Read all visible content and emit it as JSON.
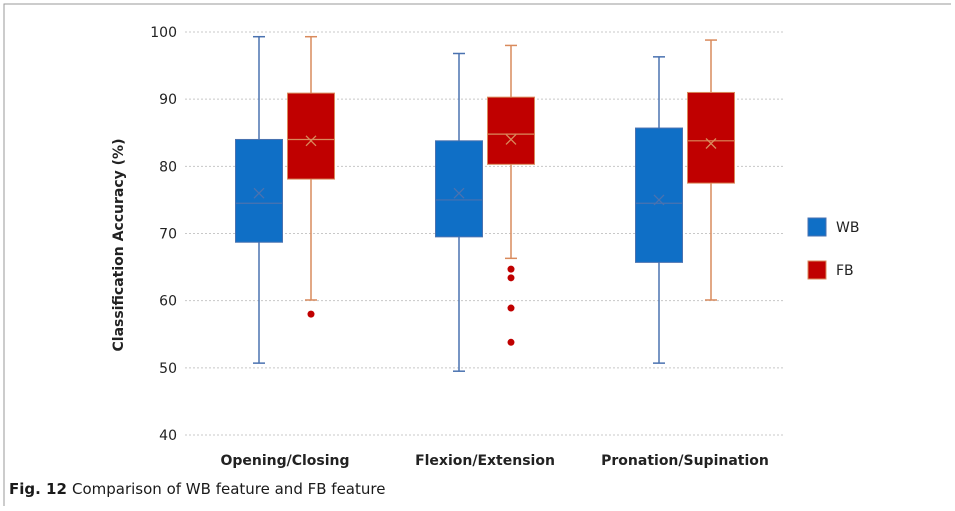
{
  "chart_data": {
    "type": "box",
    "ylabel": "Classification Accuracy (%)",
    "categories": [
      "Opening/Closing",
      "Flexion/Extension",
      "Pronation/Supination"
    ],
    "ylim": [
      40,
      100
    ],
    "yticks": [
      40,
      50,
      60,
      70,
      80,
      90,
      100
    ],
    "grid": true,
    "series": [
      {
        "name": "WB",
        "color": "#0f6fc6",
        "whisker_color": "#4a72b0",
        "whisker_low": [
          50.7,
          49.5,
          50.7
        ],
        "q1": [
          68.7,
          69.5,
          65.7
        ],
        "median": [
          74.5,
          75,
          74.5
        ],
        "q3": [
          84.0,
          83.8,
          85.7
        ],
        "whisker_high": [
          99.3,
          96.8,
          96.3
        ],
        "mean": [
          76,
          76,
          75
        ],
        "outliers": [
          [],
          [],
          []
        ]
      },
      {
        "name": "FB",
        "color": "#c00000",
        "whisker_color": "#d98a5c",
        "whisker_low": [
          60.1,
          66.3,
          60.1
        ],
        "q1": [
          78.1,
          80.3,
          77.5
        ],
        "median": [
          84.0,
          84.8,
          83.8
        ],
        "q3": [
          90.9,
          90.3,
          91.0
        ],
        "whisker_high": [
          99.3,
          98.0,
          98.8
        ],
        "mean": [
          83.8,
          84,
          83.4
        ],
        "outliers": [
          [
            58.0
          ],
          [
            64.7,
            63.4,
            58.9,
            53.8
          ],
          []
        ]
      }
    ],
    "legend": "right"
  },
  "caption": {
    "label": "Fig. 12",
    "text": "Comparison of WB feature and FB feature"
  }
}
